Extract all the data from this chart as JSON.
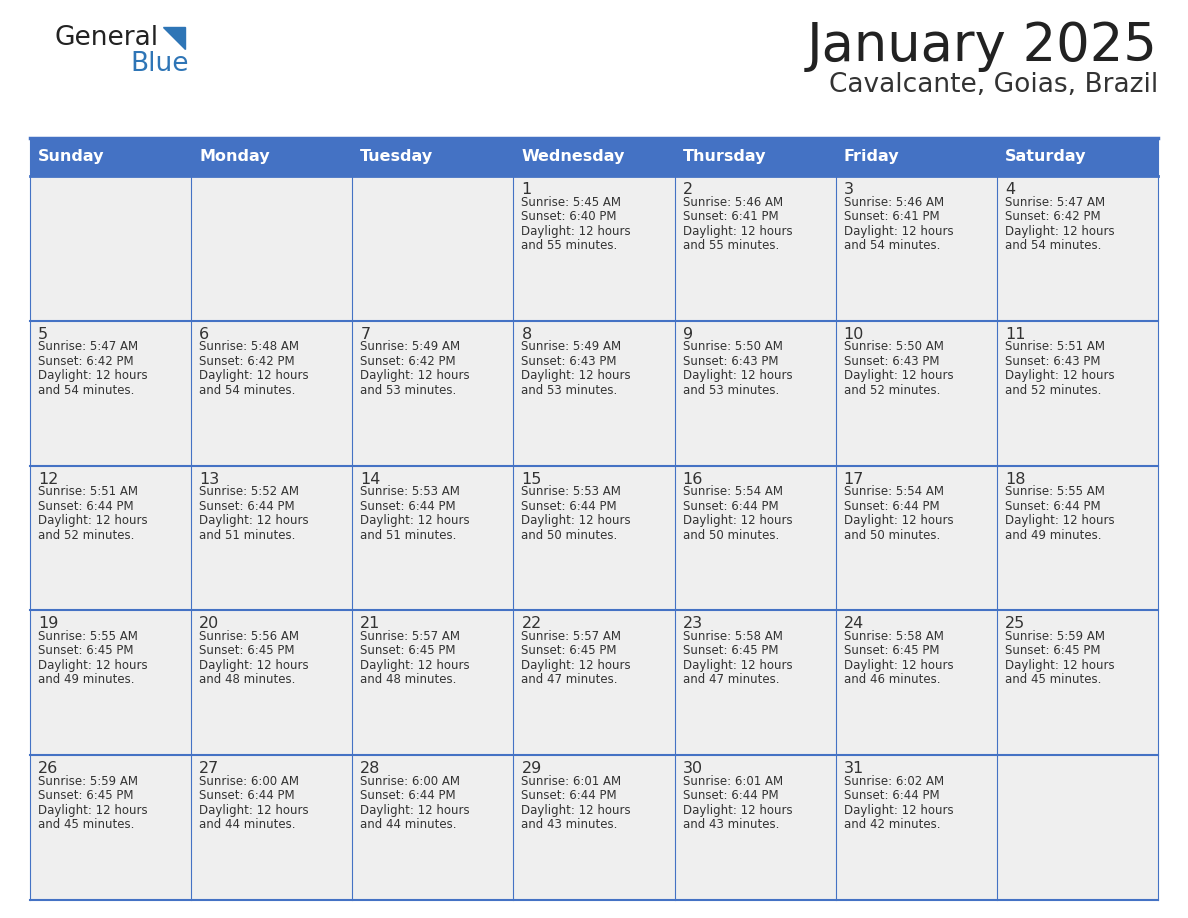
{
  "title": "January 2025",
  "subtitle": "Cavalcante, Goias, Brazil",
  "days_of_week": [
    "Sunday",
    "Monday",
    "Tuesday",
    "Wednesday",
    "Thursday",
    "Friday",
    "Saturday"
  ],
  "header_bg": "#4472C4",
  "header_text": "#FFFFFF",
  "cell_bg": "#EFEFEF",
  "cell_text": "#333333",
  "border_color": "#4472C4",
  "title_color": "#222222",
  "subtitle_color": "#333333",
  "general_color": "#222222",
  "blue_color": "#2E75B6",
  "weeks": [
    [
      {
        "day": null,
        "sunrise": null,
        "sunset": null,
        "daylight_suffix": null
      },
      {
        "day": null,
        "sunrise": null,
        "sunset": null,
        "daylight_suffix": null
      },
      {
        "day": null,
        "sunrise": null,
        "sunset": null,
        "daylight_suffix": null
      },
      {
        "day": 1,
        "sunrise": "5:45 AM",
        "sunset": "6:40 PM",
        "daylight_suffix": "55 minutes."
      },
      {
        "day": 2,
        "sunrise": "5:46 AM",
        "sunset": "6:41 PM",
        "daylight_suffix": "55 minutes."
      },
      {
        "day": 3,
        "sunrise": "5:46 AM",
        "sunset": "6:41 PM",
        "daylight_suffix": "54 minutes."
      },
      {
        "day": 4,
        "sunrise": "5:47 AM",
        "sunset": "6:42 PM",
        "daylight_suffix": "54 minutes."
      }
    ],
    [
      {
        "day": 5,
        "sunrise": "5:47 AM",
        "sunset": "6:42 PM",
        "daylight_suffix": "54 minutes."
      },
      {
        "day": 6,
        "sunrise": "5:48 AM",
        "sunset": "6:42 PM",
        "daylight_suffix": "54 minutes."
      },
      {
        "day": 7,
        "sunrise": "5:49 AM",
        "sunset": "6:42 PM",
        "daylight_suffix": "53 minutes."
      },
      {
        "day": 8,
        "sunrise": "5:49 AM",
        "sunset": "6:43 PM",
        "daylight_suffix": "53 minutes."
      },
      {
        "day": 9,
        "sunrise": "5:50 AM",
        "sunset": "6:43 PM",
        "daylight_suffix": "53 minutes."
      },
      {
        "day": 10,
        "sunrise": "5:50 AM",
        "sunset": "6:43 PM",
        "daylight_suffix": "52 minutes."
      },
      {
        "day": 11,
        "sunrise": "5:51 AM",
        "sunset": "6:43 PM",
        "daylight_suffix": "52 minutes."
      }
    ],
    [
      {
        "day": 12,
        "sunrise": "5:51 AM",
        "sunset": "6:44 PM",
        "daylight_suffix": "52 minutes."
      },
      {
        "day": 13,
        "sunrise": "5:52 AM",
        "sunset": "6:44 PM",
        "daylight_suffix": "51 minutes."
      },
      {
        "day": 14,
        "sunrise": "5:53 AM",
        "sunset": "6:44 PM",
        "daylight_suffix": "51 minutes."
      },
      {
        "day": 15,
        "sunrise": "5:53 AM",
        "sunset": "6:44 PM",
        "daylight_suffix": "50 minutes."
      },
      {
        "day": 16,
        "sunrise": "5:54 AM",
        "sunset": "6:44 PM",
        "daylight_suffix": "50 minutes."
      },
      {
        "day": 17,
        "sunrise": "5:54 AM",
        "sunset": "6:44 PM",
        "daylight_suffix": "50 minutes."
      },
      {
        "day": 18,
        "sunrise": "5:55 AM",
        "sunset": "6:44 PM",
        "daylight_suffix": "49 minutes."
      }
    ],
    [
      {
        "day": 19,
        "sunrise": "5:55 AM",
        "sunset": "6:45 PM",
        "daylight_suffix": "49 minutes."
      },
      {
        "day": 20,
        "sunrise": "5:56 AM",
        "sunset": "6:45 PM",
        "daylight_suffix": "48 minutes."
      },
      {
        "day": 21,
        "sunrise": "5:57 AM",
        "sunset": "6:45 PM",
        "daylight_suffix": "48 minutes."
      },
      {
        "day": 22,
        "sunrise": "5:57 AM",
        "sunset": "6:45 PM",
        "daylight_suffix": "47 minutes."
      },
      {
        "day": 23,
        "sunrise": "5:58 AM",
        "sunset": "6:45 PM",
        "daylight_suffix": "47 minutes."
      },
      {
        "day": 24,
        "sunrise": "5:58 AM",
        "sunset": "6:45 PM",
        "daylight_suffix": "46 minutes."
      },
      {
        "day": 25,
        "sunrise": "5:59 AM",
        "sunset": "6:45 PM",
        "daylight_suffix": "45 minutes."
      }
    ],
    [
      {
        "day": 26,
        "sunrise": "5:59 AM",
        "sunset": "6:45 PM",
        "daylight_suffix": "45 minutes."
      },
      {
        "day": 27,
        "sunrise": "6:00 AM",
        "sunset": "6:44 PM",
        "daylight_suffix": "44 minutes."
      },
      {
        "day": 28,
        "sunrise": "6:00 AM",
        "sunset": "6:44 PM",
        "daylight_suffix": "44 minutes."
      },
      {
        "day": 29,
        "sunrise": "6:01 AM",
        "sunset": "6:44 PM",
        "daylight_suffix": "43 minutes."
      },
      {
        "day": 30,
        "sunrise": "6:01 AM",
        "sunset": "6:44 PM",
        "daylight_suffix": "43 minutes."
      },
      {
        "day": 31,
        "sunrise": "6:02 AM",
        "sunset": "6:44 PM",
        "daylight_suffix": "42 minutes."
      },
      {
        "day": null,
        "sunrise": null,
        "sunset": null,
        "daylight_suffix": null
      }
    ]
  ]
}
